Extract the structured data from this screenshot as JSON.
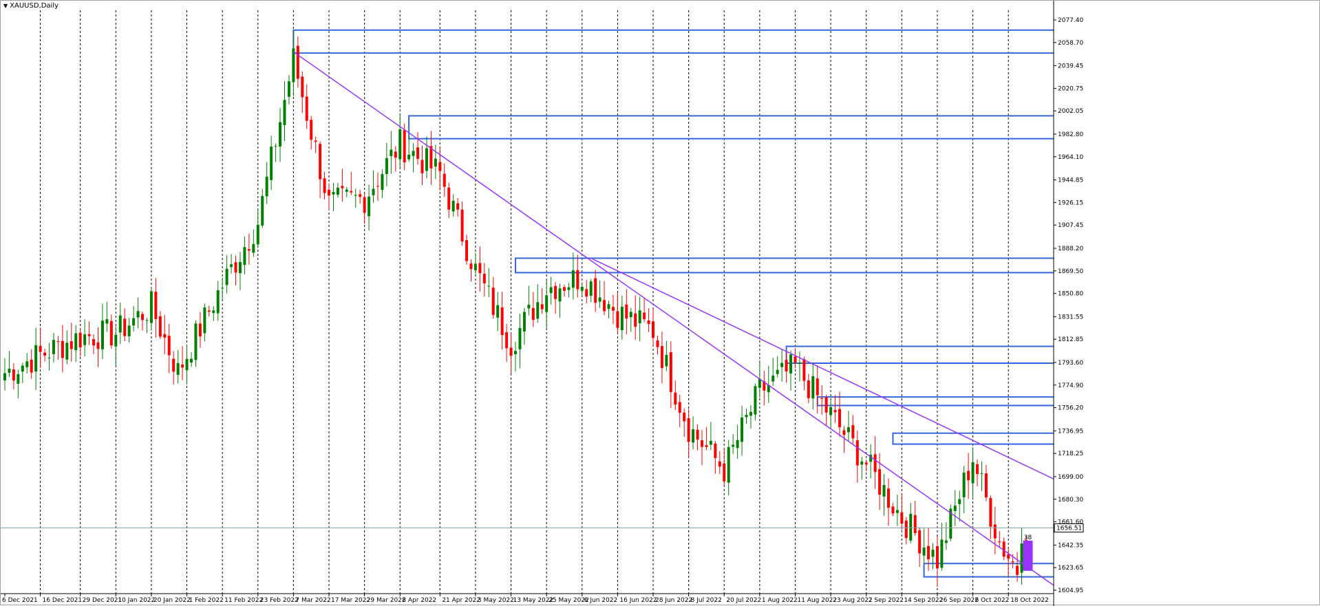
{
  "window": {
    "symbol_title": "XAUUSD,Daily",
    "menu_icon": "triangle-down-icon"
  },
  "price_axis": {
    "labels": [
      "2077.40",
      "2058.70",
      "2039.45",
      "2020.75",
      "2002.05",
      "1982.80",
      "1964.10",
      "1944.85",
      "1926.15",
      "1907.45",
      "1888.20",
      "1869.50",
      "1850.80",
      "1831.55",
      "1812.85",
      "1793.60",
      "1774.90",
      "1756.20",
      "1736.95",
      "1718.25",
      "1699.00",
      "1680.30",
      "1661.60",
      "1642.35",
      "1623.65",
      "1604.95"
    ],
    "current_price": "1656.51",
    "current_price_color": "#000000"
  },
  "time_axis": {
    "labels": [
      "6 Dec 2021",
      "16 Dec 2021",
      "29 Dec 2021",
      "10 Jan 2022",
      "20 Jan 2022",
      "1 Feb 2022",
      "11 Feb 2022",
      "23 Feb 2022",
      "7 Mar 2022",
      "17 Mar 2022",
      "29 Mar 2022",
      "8 Apr 2022",
      "21 Apr 2022",
      "3 May 2022",
      "13 May 2022",
      "25 May 2022",
      "6 Jun 2022",
      "16 Jun 2022",
      "28 Jun 2022",
      "8 Jul 2022",
      "20 Jul 2022",
      "1 Aug 2022",
      "11 Aug 2022",
      "23 Aug 2022",
      "2 Sep 2022",
      "14 Sep 2022",
      "26 Sep 2022",
      "6 Oct 2022",
      "18 Oct 2022"
    ]
  },
  "colors": {
    "bull": "#008000",
    "bear": "#ff0000",
    "zone": "#3366dd",
    "trendline": "#9933ff",
    "grid": "#000000",
    "marker": "#9933ff"
  },
  "chart_data": {
    "type": "candlestick",
    "symbol": "XAUUSD",
    "timeframe": "Daily",
    "ylim": [
      1604.95,
      2077.4
    ],
    "anchors": [
      {
        "date": "6 Dec 2021",
        "price": 1785
      },
      {
        "date": "16 Dec 2021",
        "price": 1800
      },
      {
        "date": "29 Dec 2021",
        "price": 1815
      },
      {
        "date": "10 Jan 2022",
        "price": 1818
      },
      {
        "date": "20 Jan 2022",
        "price": 1840
      },
      {
        "date": "28 Jan 2022",
        "price": 1786
      },
      {
        "date": "11 Feb 2022",
        "price": 1858
      },
      {
        "date": "23 Feb 2022",
        "price": 1910
      },
      {
        "date": "7 Mar 2022",
        "price": 2045
      },
      {
        "date": "17 Mar 2022",
        "price": 1925
      },
      {
        "date": "29 Mar 2022",
        "price": 1930
      },
      {
        "date": "8 Apr 2022",
        "price": 1975
      },
      {
        "date": "21 Apr 2022",
        "price": 1950
      },
      {
        "date": "3 May 2022",
        "price": 1870
      },
      {
        "date": "13 May 2022",
        "price": 1810
      },
      {
        "date": "25 May 2022",
        "price": 1855
      },
      {
        "date": "6 Jun 2022",
        "price": 1865
      },
      {
        "date": "16 Jun 2022",
        "price": 1835
      },
      {
        "date": "28 Jun 2022",
        "price": 1820
      },
      {
        "date": "8 Jul 2022",
        "price": 1740
      },
      {
        "date": "20 Jul 2022",
        "price": 1705
      },
      {
        "date": "1 Aug 2022",
        "price": 1770
      },
      {
        "date": "11 Aug 2022",
        "price": 1790
      },
      {
        "date": "23 Aug 2022",
        "price": 1750
      },
      {
        "date": "2 Sep 2022",
        "price": 1710
      },
      {
        "date": "14 Sep 2022",
        "price": 1665
      },
      {
        "date": "26 Sep 2022",
        "price": 1630
      },
      {
        "date": "6 Oct 2022",
        "price": 1715
      },
      {
        "date": "14 Oct 2022",
        "price": 1645
      },
      {
        "date": "20 Oct 2022",
        "price": 1622
      },
      {
        "date": "21 Oct 2022",
        "price": 1656
      }
    ],
    "zones": [
      {
        "start": "7 Mar 2022",
        "top": 2069,
        "bottom": 2050
      },
      {
        "start": "12 Apr 2022",
        "top": 1998,
        "bottom": 1979
      },
      {
        "start": "16 May 2022",
        "top": 1880,
        "bottom": 1868
      },
      {
        "start": "9 Aug 2022",
        "top": 1807,
        "bottom": 1793
      },
      {
        "start": "18 Aug 2022",
        "top": 1765,
        "bottom": 1758
      },
      {
        "start": "12 Sep 2022",
        "top": 1735,
        "bottom": 1726
      },
      {
        "start": "21 Sep 2022",
        "top": 1627,
        "bottom": 1616
      }
    ],
    "trendlines": [
      {
        "from": {
          "date": "7 Mar 2022",
          "price": 2051
        },
        "to": {
          "date": "24 Oct 2022",
          "price": 1625
        }
      },
      {
        "from": {
          "date": "8 Jun 2022",
          "price": 1880
        },
        "to": {
          "date": "24 Oct 2022",
          "price": 1708
        }
      }
    ],
    "current_marker": {
      "date": "21 Oct 2022",
      "top": 1646,
      "bottom": 1621,
      "label": "38"
    }
  }
}
